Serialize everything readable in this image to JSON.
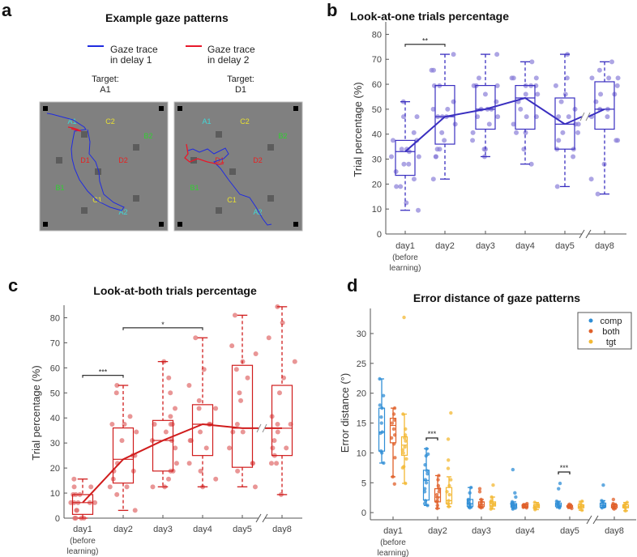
{
  "panel_a": {
    "label": "a",
    "title": "Example gaze patterns",
    "legend": [
      {
        "line1": "Gaze trace",
        "line2": "in delay 1",
        "color": "#1f2be0"
      },
      {
        "line1": "Gaze trace",
        "line2": "in delay 2",
        "color": "#e8182a"
      }
    ],
    "targets": [
      {
        "label": "Target:",
        "value": "A1"
      },
      {
        "label": "Target:",
        "value": "D1"
      }
    ],
    "grid_labels": [
      {
        "text": "A1",
        "color": "#40d8d8"
      },
      {
        "text": "C2",
        "color": "#e8e030"
      },
      {
        "text": "B2",
        "color": "#30d030"
      },
      {
        "text": "D1",
        "color": "#e82020"
      },
      {
        "text": "D2",
        "color": "#e82020"
      },
      {
        "text": "B1",
        "color": "#30d030"
      },
      {
        "text": "C1",
        "color": "#e8e030"
      },
      {
        "text": "A2",
        "color": "#40d8d8"
      }
    ]
  },
  "chart_data": [
    {
      "id": "b",
      "panel_label": "b",
      "type": "box",
      "title": "Look-at-one trials percentage",
      "ylabel": "Trial percentage (%)",
      "ylim": [
        0,
        85
      ],
      "yticks": [
        0,
        10,
        20,
        30,
        40,
        50,
        60,
        70,
        80
      ],
      "categories": [
        "day1",
        "day2",
        "day3",
        "day4",
        "day5",
        "day8"
      ],
      "category_sublabel": [
        "(before",
        "learning)"
      ],
      "color": "#3a2fc0",
      "point_color": "#8a7fd8",
      "boxes": [
        {
          "min": 9.5,
          "q1": 23.5,
          "median": 33,
          "q3": 37.5,
          "max": 53,
          "points": [
            31,
            37.5,
            37.5,
            34,
            34,
            28,
            28,
            25,
            19,
            12.5,
            9.5,
            22,
            19,
            31,
            40.6,
            47,
            47,
            53,
            33
          ]
        },
        {
          "min": 22,
          "q1": 36,
          "median": 47,
          "q3": 59.5,
          "max": 72,
          "points": [
            59.4,
            59.4,
            53,
            47,
            47,
            44,
            37.5,
            34,
            34,
            31,
            31,
            22,
            72,
            65.6,
            65.6,
            50,
            50,
            47,
            40.6
          ]
        },
        {
          "min": 31,
          "q1": 42,
          "median": 50,
          "q3": 59.5,
          "max": 72,
          "points": [
            62.5,
            59.4,
            59.4,
            59.4,
            56,
            53,
            50,
            50,
            50,
            47,
            47,
            44,
            40.6,
            37.5,
            34,
            34,
            31,
            72
          ]
        },
        {
          "min": 28,
          "q1": 42,
          "median": 54.5,
          "q3": 59.5,
          "max": 69,
          "points": [
            62.5,
            62.5,
            62.5,
            59.4,
            59.4,
            59.4,
            56,
            56,
            53,
            50,
            47,
            47,
            44,
            40.6,
            40.6,
            34,
            28,
            69
          ]
        },
        {
          "min": 19,
          "q1": 34,
          "median": 44,
          "q3": 54.5,
          "max": 72,
          "points": [
            62.5,
            59.4,
            56,
            53,
            50,
            47,
            47,
            44,
            40.6,
            40.6,
            37.5,
            34,
            34,
            31,
            72,
            19,
            44
          ]
        },
        {
          "min": 16,
          "q1": 42,
          "median": 50,
          "q3": 61,
          "max": 69,
          "points": [
            69,
            65.6,
            62.5,
            62.5,
            62.5,
            59.4,
            56,
            56,
            53,
            50,
            50,
            47,
            47,
            37.5,
            37.5,
            28,
            22,
            16
          ]
        }
      ],
      "significance": [
        {
          "from": 0,
          "to": 1,
          "y": 76,
          "label": "**"
        }
      ]
    },
    {
      "id": "c",
      "panel_label": "c",
      "type": "box",
      "title": "Look-at-both trials percentage",
      "ylabel": "Trial percentage (%)",
      "ylim": [
        0,
        85
      ],
      "yticks": [
        0,
        10,
        20,
        30,
        40,
        50,
        60,
        70,
        80
      ],
      "categories": [
        "day1",
        "day2",
        "day3",
        "day4",
        "day5",
        "day8"
      ],
      "category_sublabel": [
        "(before",
        "learning)"
      ],
      "color": "#d01c1c",
      "point_color": "#e06a6a",
      "boxes": [
        {
          "min": 0,
          "q1": 1.5,
          "median": 6.2,
          "q3": 9.4,
          "max": 15.6,
          "points": [
            6.2,
            6.2,
            6.2,
            6.2,
            3.1,
            9.4,
            9.4,
            0,
            0,
            0,
            0,
            12.5,
            12.5,
            3.1,
            15.6,
            9.4,
            6.2
          ]
        },
        {
          "min": 3.1,
          "q1": 14,
          "median": 23.5,
          "q3": 36,
          "max": 53,
          "points": [
            53,
            50,
            40.6,
            37.5,
            37.5,
            34.4,
            31,
            25,
            25,
            21.9,
            18.8,
            18.8,
            15.6,
            12.5,
            12.5,
            9.4,
            3.1
          ]
        },
        {
          "min": 12.5,
          "q1": 18.8,
          "median": 31,
          "q3": 39,
          "max": 62.5,
          "points": [
            62.5,
            56,
            50,
            43.8,
            40.6,
            37.5,
            37.5,
            37.5,
            34.4,
            31,
            31,
            28,
            21.9,
            18.8,
            18.8,
            15.6,
            12.5,
            12.5
          ]
        },
        {
          "min": 12.5,
          "q1": 25,
          "median": 37.5,
          "q3": 45.3,
          "max": 72,
          "points": [
            72,
            59.4,
            53,
            46.9,
            43.8,
            43.8,
            37.5,
            37.5,
            34.4,
            31,
            31,
            28,
            21.9,
            18.8,
            15.6,
            12.5
          ]
        },
        {
          "min": 12.5,
          "q1": 20.3,
          "median": 35.9,
          "q3": 61,
          "max": 81,
          "points": [
            81,
            68.8,
            65.6,
            62.5,
            59.4,
            56,
            50,
            46.9,
            37.5,
            34.4,
            34.4,
            28,
            21.9,
            21.9,
            18.8,
            12.5
          ]
        },
        {
          "min": 9.4,
          "q1": 25,
          "median": 35.9,
          "q3": 53,
          "max": 84.4,
          "points": [
            84.4,
            78,
            72,
            62.5,
            56,
            50,
            40.6,
            37.5,
            37.5,
            34.4,
            31,
            28,
            28,
            25,
            21.9,
            21.9,
            9.4
          ]
        }
      ],
      "significance": [
        {
          "from": 0,
          "to": 1,
          "y": 57,
          "label": "***"
        },
        {
          "from": 1,
          "to": 3,
          "y": 76,
          "label": "*"
        }
      ]
    },
    {
      "id": "d",
      "panel_label": "d",
      "type": "grouped-box",
      "title": "Error distance of gaze patterns",
      "ylabel": "Error distance (°)",
      "ylim": [
        -1.2,
        34.2
      ],
      "yticks": [
        0,
        5,
        10,
        15,
        20,
        25,
        30
      ],
      "categories": [
        "day1",
        "day2",
        "day3",
        "day4",
        "day5",
        "day8"
      ],
      "category_sublabel": [
        "(before",
        "learning)"
      ],
      "legend": {
        "position": "top-right",
        "entries": [
          "comp",
          "both",
          "tgt"
        ]
      },
      "series": [
        {
          "name": "comp",
          "color": "#2f8ed6",
          "boxes": [
            {
              "min": 8.3,
              "q1": 10.3,
              "median": 13.5,
              "q3": 17.5,
              "max": 22.4,
              "points": [
                22.4,
                19.6,
                18,
                17.5,
                16,
                15,
                13.5,
                13.3,
                10.3,
                10,
                8.3
              ]
            },
            {
              "min": 1.2,
              "q1": 2.1,
              "median": 5.4,
              "q3": 7.1,
              "max": 10.7,
              "points": [
                10.7,
                9.8,
                9.5,
                8,
                7,
                6.5,
                5.5,
                5,
                4,
                3.5,
                2,
                1.5,
                1.2
              ]
            },
            {
              "min": 0.8,
              "q1": 1,
              "median": 1.5,
              "q3": 2.2,
              "max": 4.2,
              "points": [
                4.2,
                3.3,
                2.2,
                2,
                1.6,
                1.5,
                1.2,
                1,
                0.8
              ]
            },
            {
              "min": 0.6,
              "q1": 0.9,
              "median": 1.2,
              "q3": 1.5,
              "max": 1.8,
              "points": [
                7.2,
                3.3,
                2.6,
                1.8,
                1.5,
                1.3,
                1.2,
                1,
                0.8,
                0.6
              ]
            },
            {
              "min": 0.8,
              "q1": 1,
              "median": 1.3,
              "q3": 1.6,
              "max": 1.9,
              "points": [
                4.9,
                4,
                1.9,
                1.6,
                1.4,
                1.2,
                1,
                0.8
              ]
            },
            {
              "min": 0.8,
              "q1": 0.9,
              "median": 1.2,
              "q3": 1.6,
              "max": 2,
              "points": [
                4.6,
                2,
                1.8,
                1.5,
                1.2,
                1,
                0.8
              ]
            }
          ]
        },
        {
          "name": "both",
          "color": "#e0602a",
          "boxes": [
            {
              "min": 6,
              "q1": 11.7,
              "median": 14.6,
              "q3": 15.8,
              "max": 17.5,
              "points": [
                17.5,
                16.5,
                15.5,
                15,
                14,
                13,
                12.5,
                11.5,
                9.2,
                6,
                4.8
              ]
            },
            {
              "min": 0.7,
              "q1": 1.8,
              "median": 2.6,
              "q3": 4,
              "max": 6.2,
              "points": [
                6.2,
                5.5,
                4.5,
                4,
                3.5,
                3,
                2.5,
                2,
                1.8,
                1.2,
                0.7
              ]
            },
            {
              "min": 0.8,
              "q1": 1,
              "median": 1.3,
              "q3": 1.8,
              "max": 2.2,
              "points": [
                4,
                3.5,
                2.2,
                1.8,
                1.5,
                1.2,
                1,
                0.8
              ]
            },
            {
              "min": 0.8,
              "q1": 0.9,
              "median": 1.1,
              "q3": 1.3,
              "max": 1.5,
              "points": [
                1.5,
                1.3,
                1.2,
                1.1,
                1,
                0.9,
                0.8
              ]
            },
            {
              "min": 0.7,
              "q1": 0.9,
              "median": 1,
              "q3": 1.2,
              "max": 1.4,
              "points": [
                1.4,
                1.2,
                1.1,
                1,
                0.9,
                0.7
              ]
            },
            {
              "min": 0.6,
              "q1": 0.8,
              "median": 1,
              "q3": 1.3,
              "max": 1.5,
              "points": [
                2.2,
                1.5,
                1.3,
                1.1,
                1,
                0.8,
                0.6
              ]
            }
          ]
        },
        {
          "name": "tgt",
          "color": "#f3b833",
          "boxes": [
            {
              "min": 4.9,
              "q1": 9.6,
              "median": 11.3,
              "q3": 12.7,
              "max": 16.5,
              "points": [
                32.7,
                16.5,
                14,
                13,
                12.5,
                12,
                11,
                10.5,
                10,
                9,
                7.7,
                7.5,
                4.9
              ]
            },
            {
              "min": 1,
              "q1": 1.5,
              "median": 2,
              "q3": 4.2,
              "max": 6,
              "points": [
                16.7,
                12.3,
                8.8,
                7.4,
                5.5,
                4.5,
                3.5,
                3,
                2,
                1.5,
                1
              ]
            },
            {
              "min": 0.6,
              "q1": 1.1,
              "median": 1.5,
              "q3": 1.8,
              "max": 2.6,
              "points": [
                4.6,
                2.6,
                2,
                1.8,
                1.5,
                1.3,
                1,
                0.6
              ]
            },
            {
              "min": 0.5,
              "q1": 0.8,
              "median": 1,
              "q3": 1.3,
              "max": 1.7,
              "points": [
                1.7,
                1.4,
                1.2,
                1,
                0.8,
                0.5
              ]
            },
            {
              "min": 0.4,
              "q1": 0.8,
              "median": 1,
              "q3": 1.3,
              "max": 1.9,
              "points": [
                1.9,
                1.5,
                1.2,
                1,
                0.8,
                0.4
              ]
            },
            {
              "min": 0.3,
              "q1": 0.8,
              "median": 1,
              "q3": 1.3,
              "max": 1.7,
              "points": [
                1.7,
                1.4,
                1.2,
                1,
                0.8,
                0.3
              ]
            }
          ]
        }
      ],
      "significance": [
        {
          "category": 1,
          "from_series": 0,
          "to_series": 1,
          "y": 12.5,
          "label": "***"
        },
        {
          "category": 4,
          "from_series": 0,
          "to_series": 1,
          "y": 6.8,
          "label": "***"
        }
      ]
    }
  ]
}
